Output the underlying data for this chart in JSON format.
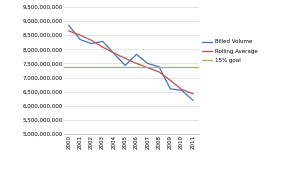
{
  "years": [
    2000,
    2001,
    2002,
    2003,
    2004,
    2005,
    2006,
    2007,
    2008,
    2009,
    2010,
    2011
  ],
  "billed_volume": [
    8850000000,
    8350000000,
    8200000000,
    8280000000,
    7850000000,
    7430000000,
    7820000000,
    7500000000,
    7380000000,
    6600000000,
    6550000000,
    6200000000
  ],
  "rolling_average": [
    8650000000,
    8500000000,
    8320000000,
    8080000000,
    7870000000,
    7680000000,
    7500000000,
    7350000000,
    7200000000,
    6900000000,
    6580000000,
    6430000000
  ],
  "goal_value": 7380000000,
  "ylim": [
    5000000000,
    9500000000
  ],
  "ytick_step": 500000000,
  "billed_color": "#4472c4",
  "rolling_color": "#c0504d",
  "goal_color": "#9bbb59",
  "legend_labels": [
    "Billed Volume",
    "Rolling Average",
    "15% goal"
  ],
  "background_color": "#ffffff"
}
